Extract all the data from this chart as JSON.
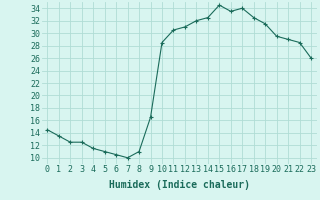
{
  "x": [
    0,
    1,
    2,
    3,
    4,
    5,
    6,
    7,
    8,
    9,
    10,
    11,
    12,
    13,
    14,
    15,
    16,
    17,
    18,
    19,
    20,
    21,
    22,
    23
  ],
  "y": [
    14.5,
    13.5,
    12.5,
    12.5,
    11.5,
    11.0,
    10.5,
    10.0,
    11.0,
    16.5,
    28.5,
    30.5,
    31.0,
    32.0,
    32.5,
    34.5,
    33.5,
    34.0,
    32.5,
    31.5,
    29.5,
    29.0,
    28.5,
    26.0
  ],
  "xlabel": "Humidex (Indice chaleur)",
  "line_color": "#1a6b5a",
  "marker": "+",
  "bg_color": "#d8f5f0",
  "grid_color": "#b0ddd5",
  "xlim": [
    -0.5,
    23.5
  ],
  "ylim": [
    9,
    35
  ],
  "yticks": [
    10,
    12,
    14,
    16,
    18,
    20,
    22,
    24,
    26,
    28,
    30,
    32,
    34
  ],
  "xtick_labels": [
    "0",
    "1",
    "2",
    "3",
    "4",
    "5",
    "6",
    "7",
    "8",
    "9",
    "10",
    "11",
    "12",
    "13",
    "14",
    "15",
    "16",
    "17",
    "18",
    "19",
    "20",
    "21",
    "22",
    "23"
  ],
  "tick_color": "#1a6b5a",
  "label_fontsize": 7,
  "tick_fontsize": 6
}
